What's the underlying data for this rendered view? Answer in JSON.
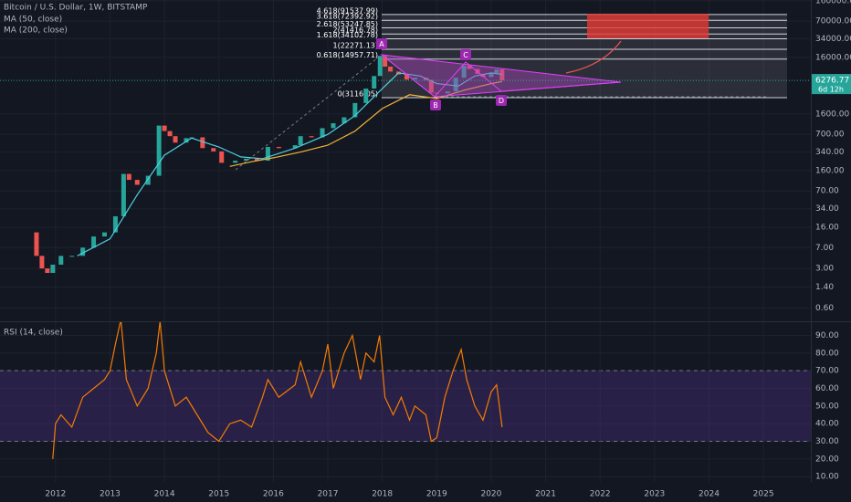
{
  "chart_data": [
    {
      "type": "candlestick",
      "title": "Bitcoin / U.S. Dollar, 1W, BITSTAMP",
      "log_scale": true,
      "up_color": "#26a69a",
      "down_color": "#ef5350",
      "xlim": [
        2010.98,
        2025.87
      ],
      "ylim": [
        0.35,
        165000
      ],
      "yticks": [
        {
          "value": 160000,
          "label": "160000.00"
        },
        {
          "value": 70000,
          "label": "70000.00"
        },
        {
          "value": 34000,
          "label": "34000.00"
        },
        {
          "value": 16000,
          "label": "16000.00"
        },
        {
          "value": 1600,
          "label": "1600.00"
        },
        {
          "value": 700,
          "label": "700.00"
        },
        {
          "value": 340,
          "label": "340.00"
        },
        {
          "value": 160,
          "label": "160.00"
        },
        {
          "value": 70,
          "label": "70.00"
        },
        {
          "value": 34,
          "label": "34.00"
        },
        {
          "value": 16,
          "label": "16.00"
        },
        {
          "value": 7,
          "label": "7.00"
        },
        {
          "value": 3,
          "label": "3.00"
        },
        {
          "value": 1.4,
          "label": "1.40"
        },
        {
          "value": 0.6,
          "label": "0.60"
        }
      ],
      "grid": true,
      "x": [
        2011.55,
        2011.65,
        2011.75,
        2011.85,
        2011.95,
        2012.1,
        2012.3,
        2012.5,
        2012.7,
        2012.9,
        2013.1,
        2013.25,
        2013.35,
        2013.5,
        2013.7,
        2013.9,
        2014.0,
        2014.1,
        2014.2,
        2014.4,
        2014.5,
        2014.7,
        2014.9,
        2015.05,
        2015.3,
        2015.5,
        2015.7,
        2015.9,
        2016.1,
        2016.4,
        2016.5,
        2016.7,
        2016.9,
        2017.1,
        2017.3,
        2017.5,
        2017.7,
        2017.85,
        2017.96,
        2018.05,
        2018.15,
        2018.3,
        2018.45,
        2018.6,
        2018.8,
        2018.9,
        2019.0,
        2019.2,
        2019.35,
        2019.5,
        2019.6,
        2019.75,
        2019.85,
        2020.0,
        2020.1,
        2020.2
      ],
      "values": [
        13,
        5,
        3,
        2.5,
        3.5,
        5,
        5,
        7,
        11,
        13,
        25,
        140,
        110,
        90,
        130,
        1000,
        800,
        650,
        500,
        600,
        620,
        400,
        350,
        220,
        240,
        260,
        240,
        420,
        400,
        450,
        650,
        620,
        900,
        1100,
        1400,
        2500,
        4500,
        7500,
        17000,
        11000,
        9000,
        8000,
        6500,
        7000,
        6400,
        3800,
        3700,
        4000,
        7000,
        11500,
        10000,
        8200,
        7200,
        8500,
        9800,
        6276.77
      ],
      "series": [
        {
          "name": "MA (50, close)",
          "color": "#4dd0e1",
          "x": [
            2012.4,
            2013.0,
            2013.5,
            2014.0,
            2014.5,
            2015.0,
            2015.4,
            2015.8,
            2016.4,
            2017.0,
            2017.5,
            2018.0,
            2018.3,
            2018.7,
            2019.0,
            2019.4,
            2019.7,
            2020.0,
            2020.2
          ],
          "values": [
            5,
            10,
            60,
            300,
            600,
            420,
            280,
            260,
            400,
            700,
            1500,
            4500,
            8500,
            7500,
            5500,
            5000,
            7500,
            8500,
            8000
          ]
        },
        {
          "name": "MA (200, close)",
          "color": "#f5b335",
          "x": [
            2015.2,
            2015.6,
            2016.0,
            2016.5,
            2017.0,
            2017.5,
            2018.0,
            2018.5,
            2019.0,
            2019.5,
            2020.0,
            2020.2
          ],
          "values": [
            190,
            230,
            270,
            340,
            450,
            800,
            2000,
            3500,
            3000,
            4200,
            5500,
            6000
          ]
        }
      ],
      "fib_levels": [
        {
          "label": "4.618(91537.99)",
          "value": 91537.99
        },
        {
          "label": "3.618(72392.92)",
          "value": 72392.92
        },
        {
          "label": "2.618(53247.85)",
          "value": 53247.85
        },
        {
          "label": "2(41416.78)",
          "value": 41416.78
        },
        {
          "label": "1.618(34102.78)",
          "value": 34102.78
        },
        {
          "label": "1(22271.13)",
          "value": 22271.13
        },
        {
          "label": "0.618(14957.71)",
          "value": 14957.71
        },
        {
          "label": "0(3116.05)",
          "value": 3116.05
        }
      ],
      "pattern_points": [
        "A",
        "B",
        "C",
        "D"
      ],
      "last_price": 6276.77,
      "countdown": "6d 12h"
    },
    {
      "type": "line",
      "title": "RSI (14, close)",
      "color": "#f57c00",
      "xlim": [
        2010.98,
        2025.87
      ],
      "ylim": [
        7,
        98
      ],
      "bands": [
        30,
        70
      ],
      "grid": true,
      "yticks": [
        {
          "value": 90,
          "label": "90.00"
        },
        {
          "value": 80,
          "label": "80.00"
        },
        {
          "value": 70,
          "label": "70.00"
        },
        {
          "value": 60,
          "label": "60.00"
        },
        {
          "value": 50,
          "label": "50.00"
        },
        {
          "value": 40,
          "label": "40.00"
        },
        {
          "value": 30,
          "label": "30.00"
        },
        {
          "value": 20,
          "label": "20.00"
        },
        {
          "value": 10,
          "label": "10.00"
        }
      ],
      "xticks": [
        2012,
        2013,
        2014,
        2015,
        2016,
        2017,
        2018,
        2019,
        2020,
        2021,
        2022,
        2023,
        2024,
        2025
      ],
      "x": [
        2011.95,
        2012.0,
        2012.1,
        2012.3,
        2012.5,
        2012.7,
        2012.9,
        2013.0,
        2013.1,
        2013.2,
        2013.3,
        2013.5,
        2013.7,
        2013.85,
        2013.92,
        2014.0,
        2014.2,
        2014.4,
        2014.6,
        2014.8,
        2015.0,
        2015.2,
        2015.4,
        2015.6,
        2015.8,
        2015.9,
        2016.1,
        2016.4,
        2016.5,
        2016.7,
        2016.9,
        2017.0,
        2017.1,
        2017.3,
        2017.45,
        2017.6,
        2017.7,
        2017.85,
        2017.95,
        2018.05,
        2018.2,
        2018.35,
        2018.5,
        2018.6,
        2018.8,
        2018.9,
        2019.0,
        2019.15,
        2019.3,
        2019.45,
        2019.55,
        2019.7,
        2019.85,
        2020.0,
        2020.1,
        2020.2
      ],
      "values": [
        20,
        40,
        45,
        38,
        55,
        60,
        65,
        70,
        85,
        99,
        65,
        50,
        60,
        80,
        98,
        70,
        50,
        55,
        45,
        35,
        30,
        40,
        42,
        38,
        55,
        65,
        55,
        62,
        75,
        55,
        70,
        85,
        60,
        80,
        90,
        65,
        80,
        75,
        90,
        55,
        45,
        55,
        42,
        50,
        45,
        30,
        32,
        55,
        70,
        82,
        65,
        50,
        42,
        58,
        62,
        38
      ]
    }
  ]
}
